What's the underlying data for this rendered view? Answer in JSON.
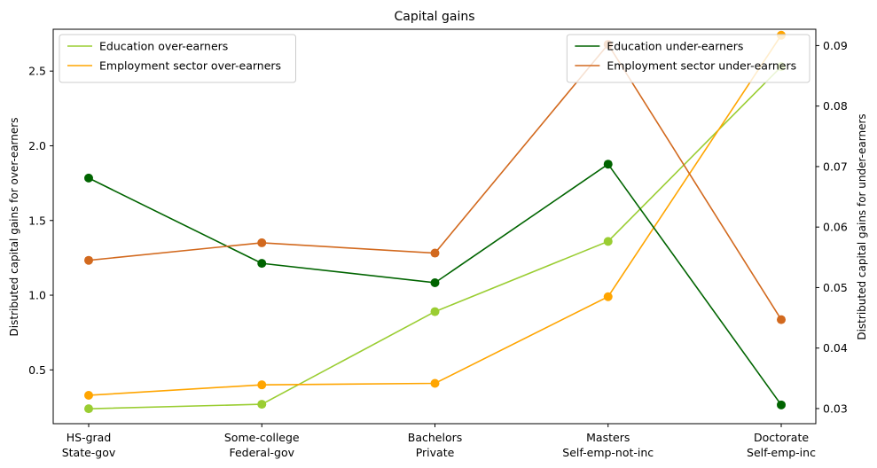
{
  "chart_data": {
    "type": "line",
    "title": "Capital gains",
    "xlabel": "",
    "categories": [
      [
        "HS-grad",
        "State-gov"
      ],
      [
        "Some-college",
        "Federal-gov"
      ],
      [
        "Bachelors",
        "Private"
      ],
      [
        "Masters",
        "Self-emp-not-inc"
      ],
      [
        "Doctorate",
        "Self-emp-inc"
      ]
    ],
    "left_axis": {
      "label": "Distributed capital gains for over-earners",
      "ylim": [
        0.14,
        2.78
      ],
      "ticks": [
        0.5,
        1.0,
        1.5,
        2.0,
        2.5
      ],
      "tick_labels": [
        "0.5",
        "1.0",
        "1.5",
        "2.0",
        "2.5"
      ]
    },
    "right_axis": {
      "label": "Distributed capital gains for under-earners",
      "ylim": [
        0.0275,
        0.0927
      ],
      "ticks": [
        0.03,
        0.04,
        0.05,
        0.06,
        0.07,
        0.08,
        0.09
      ],
      "tick_labels": [
        "0.03",
        "0.04",
        "0.05",
        "0.06",
        "0.07",
        "0.08",
        "0.09"
      ]
    },
    "series": [
      {
        "name": "Education over-earners",
        "axis": "left",
        "color": "#9acd32",
        "values": [
          0.24,
          0.27,
          0.89,
          1.36,
          2.53
        ]
      },
      {
        "name": "Employment sector over-earners",
        "axis": "left",
        "color": "#ffa500",
        "values": [
          0.33,
          0.4,
          0.41,
          0.99,
          2.74
        ]
      },
      {
        "name": "Education under-earners",
        "axis": "right",
        "color": "#006400",
        "values": [
          0.0681,
          0.054,
          0.0508,
          0.0704,
          0.0306
        ]
      },
      {
        "name": "Employment sector under-earners",
        "axis": "right",
        "color": "#d2691e",
        "values": [
          0.0545,
          0.0574,
          0.0557,
          0.0902,
          0.0447
        ]
      }
    ],
    "legends": [
      {
        "placement": "upper left",
        "series": [
          0,
          1
        ]
      },
      {
        "placement": "upper right",
        "series": [
          2,
          3
        ]
      }
    ],
    "grid": false
  }
}
